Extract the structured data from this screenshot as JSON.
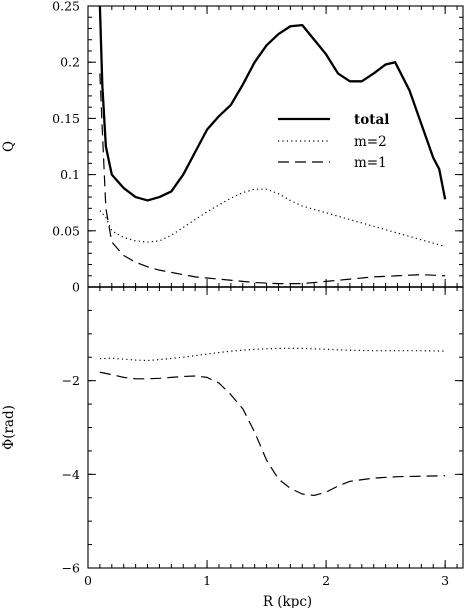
{
  "chart_data": [
    {
      "type": "line",
      "panel": "top",
      "title": "",
      "xlabel": "",
      "ylabel": "Q",
      "xlim": [
        0,
        3.15
      ],
      "ylim": [
        0,
        0.25
      ],
      "x_ticks": [
        0,
        1,
        2,
        3
      ],
      "y_ticks": [
        0,
        0.05,
        0.1,
        0.15,
        0.2,
        0.25
      ],
      "y_tick_labels": [
        "0",
        "0.05",
        "0.1",
        "0.15",
        "0.2",
        "0.25"
      ],
      "zero_line": true,
      "grid": false,
      "legend_placement": "right, middle",
      "series": [
        {
          "name": "total",
          "style": "solid-bold",
          "points": [
            [
              0.1,
              0.25
            ],
            [
              0.12,
              0.18
            ],
            [
              0.15,
              0.125
            ],
            [
              0.2,
              0.1
            ],
            [
              0.3,
              0.088
            ],
            [
              0.4,
              0.08
            ],
            [
              0.5,
              0.077
            ],
            [
              0.6,
              0.08
            ],
            [
              0.7,
              0.085
            ],
            [
              0.8,
              0.1
            ],
            [
              0.9,
              0.12
            ],
            [
              1.0,
              0.14
            ],
            [
              1.1,
              0.152
            ],
            [
              1.2,
              0.162
            ],
            [
              1.3,
              0.18
            ],
            [
              1.4,
              0.2
            ],
            [
              1.5,
              0.215
            ],
            [
              1.6,
              0.225
            ],
            [
              1.7,
              0.232
            ],
            [
              1.8,
              0.233
            ],
            [
              1.9,
              0.22
            ],
            [
              2.0,
              0.207
            ],
            [
              2.1,
              0.19
            ],
            [
              2.2,
              0.183
            ],
            [
              2.3,
              0.183
            ],
            [
              2.4,
              0.19
            ],
            [
              2.5,
              0.198
            ],
            [
              2.58,
              0.2
            ],
            [
              2.7,
              0.175
            ],
            [
              2.8,
              0.145
            ],
            [
              2.9,
              0.115
            ],
            [
              2.95,
              0.105
            ],
            [
              3.0,
              0.078
            ]
          ]
        },
        {
          "name": "m=2",
          "style": "dotted",
          "points": [
            [
              0.1,
              0.068
            ],
            [
              0.15,
              0.062
            ],
            [
              0.2,
              0.05
            ],
            [
              0.3,
              0.044
            ],
            [
              0.4,
              0.041
            ],
            [
              0.5,
              0.04
            ],
            [
              0.6,
              0.041
            ],
            [
              0.7,
              0.046
            ],
            [
              0.8,
              0.053
            ],
            [
              0.9,
              0.06
            ],
            [
              1.0,
              0.067
            ],
            [
              1.1,
              0.073
            ],
            [
              1.2,
              0.079
            ],
            [
              1.3,
              0.084
            ],
            [
              1.4,
              0.087
            ],
            [
              1.5,
              0.087
            ],
            [
              1.6,
              0.083
            ],
            [
              1.7,
              0.077
            ],
            [
              1.8,
              0.072
            ],
            [
              1.9,
              0.069
            ],
            [
              2.0,
              0.066
            ],
            [
              2.2,
              0.06
            ],
            [
              2.4,
              0.054
            ],
            [
              2.6,
              0.048
            ],
            [
              2.8,
              0.042
            ],
            [
              3.0,
              0.036
            ]
          ]
        },
        {
          "name": "m=1",
          "style": "dashed",
          "points": [
            [
              0.1,
              0.19
            ],
            [
              0.12,
              0.14
            ],
            [
              0.15,
              0.07
            ],
            [
              0.2,
              0.04
            ],
            [
              0.3,
              0.028
            ],
            [
              0.4,
              0.022
            ],
            [
              0.5,
              0.018
            ],
            [
              0.6,
              0.015
            ],
            [
              0.7,
              0.013
            ],
            [
              0.8,
              0.011
            ],
            [
              0.9,
              0.009
            ],
            [
              1.0,
              0.008
            ],
            [
              1.2,
              0.006
            ],
            [
              1.4,
              0.004
            ],
            [
              1.6,
              0.003
            ],
            [
              1.8,
              0.003
            ],
            [
              2.0,
              0.005
            ],
            [
              2.2,
              0.007
            ],
            [
              2.4,
              0.009
            ],
            [
              2.6,
              0.01
            ],
            [
              2.8,
              0.011
            ],
            [
              3.0,
              0.01
            ]
          ]
        }
      ]
    },
    {
      "type": "line",
      "panel": "bottom",
      "title": "",
      "xlabel": "R (kpc)",
      "ylabel": "Φ(rad)",
      "xlim": [
        0,
        3.15
      ],
      "ylim": [
        -6,
        0
      ],
      "x_ticks": [
        0,
        1,
        2,
        3
      ],
      "x_tick_labels": [
        "0",
        "1",
        "2",
        "3"
      ],
      "y_ticks": [
        -6,
        -4,
        -2
      ],
      "y_tick_labels": [
        "−6",
        "−4",
        "−2"
      ],
      "grid": false,
      "series": [
        {
          "name": "m=2",
          "style": "dotted",
          "points": [
            [
              0.1,
              -1.53
            ],
            [
              0.2,
              -1.52
            ],
            [
              0.3,
              -1.54
            ],
            [
              0.4,
              -1.56
            ],
            [
              0.5,
              -1.57
            ],
            [
              0.6,
              -1.55
            ],
            [
              0.8,
              -1.5
            ],
            [
              1.0,
              -1.43
            ],
            [
              1.2,
              -1.37
            ],
            [
              1.4,
              -1.33
            ],
            [
              1.6,
              -1.31
            ],
            [
              1.8,
              -1.31
            ],
            [
              2.0,
              -1.33
            ],
            [
              2.2,
              -1.35
            ],
            [
              2.4,
              -1.36
            ],
            [
              2.6,
              -1.36
            ],
            [
              2.8,
              -1.36
            ],
            [
              3.0,
              -1.37
            ]
          ]
        },
        {
          "name": "m=1",
          "style": "dashed",
          "points": [
            [
              0.1,
              -1.82
            ],
            [
              0.2,
              -1.87
            ],
            [
              0.3,
              -1.93
            ],
            [
              0.4,
              -1.96
            ],
            [
              0.5,
              -1.96
            ],
            [
              0.6,
              -1.95
            ],
            [
              0.7,
              -1.93
            ],
            [
              0.8,
              -1.91
            ],
            [
              0.9,
              -1.9
            ],
            [
              1.0,
              -1.93
            ],
            [
              1.1,
              -2.05
            ],
            [
              1.2,
              -2.3
            ],
            [
              1.3,
              -2.6
            ],
            [
              1.4,
              -3.1
            ],
            [
              1.5,
              -3.7
            ],
            [
              1.6,
              -4.1
            ],
            [
              1.7,
              -4.3
            ],
            [
              1.8,
              -4.42
            ],
            [
              1.9,
              -4.45
            ],
            [
              2.0,
              -4.38
            ],
            [
              2.1,
              -4.25
            ],
            [
              2.2,
              -4.15
            ],
            [
              2.4,
              -4.08
            ],
            [
              2.6,
              -4.05
            ],
            [
              2.8,
              -4.04
            ],
            [
              3.0,
              -4.03
            ]
          ]
        }
      ]
    }
  ]
}
